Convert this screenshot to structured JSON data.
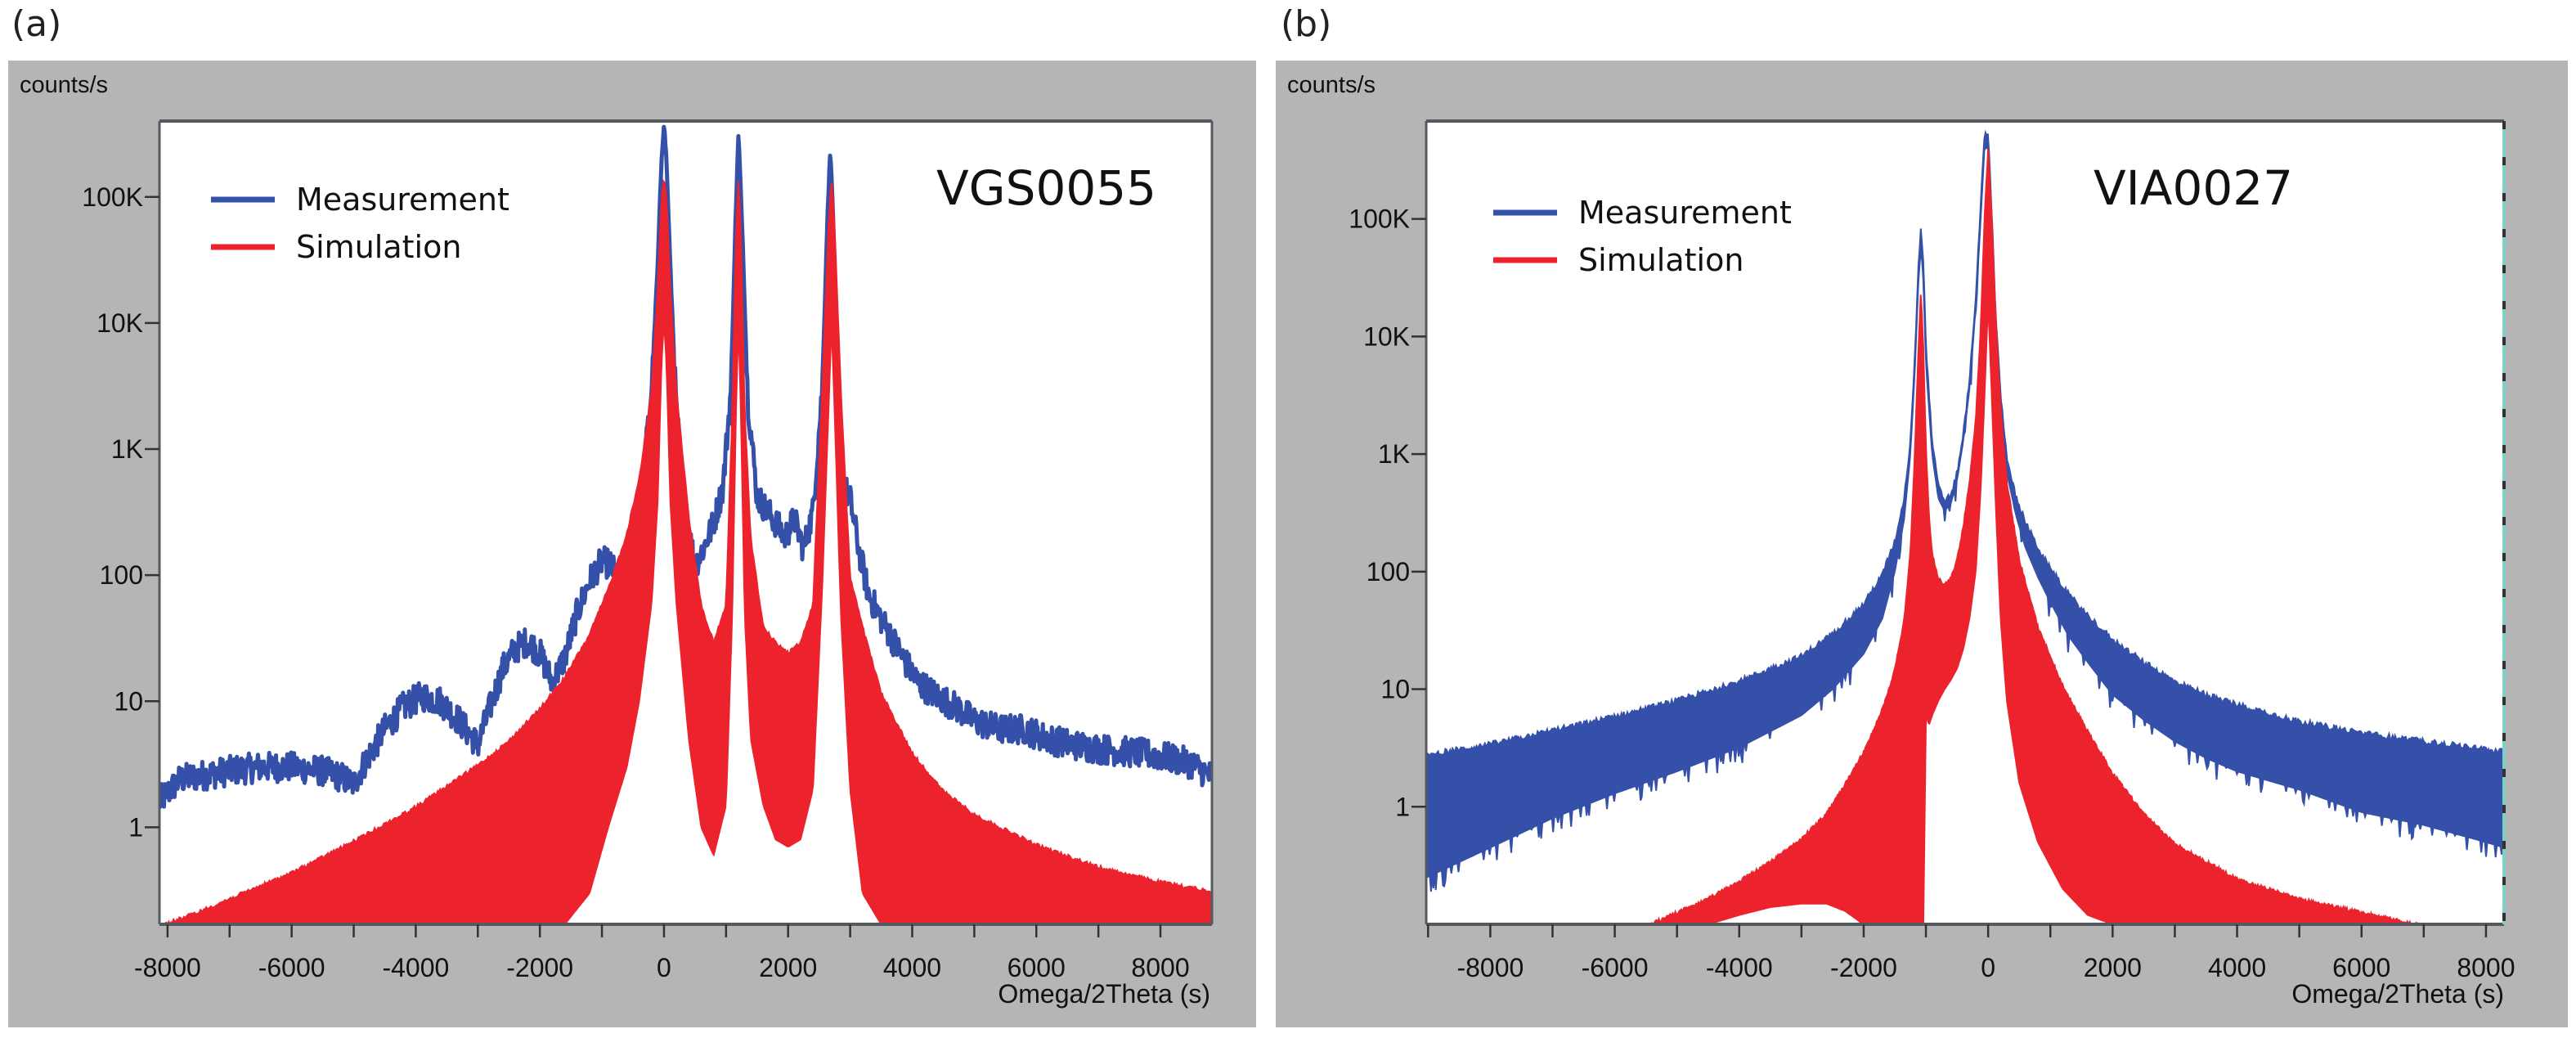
{
  "figure": {
    "panels": [
      {
        "label": "(a)",
        "y_unit_label": "counts/s",
        "x_axis_label": "Omega/2Theta (s)",
        "sample_id": "VGS0055"
      },
      {
        "label": "(b)",
        "y_unit_label": "counts/s",
        "x_axis_label": "Omega/2Theta (s)",
        "sample_id": "VIA0027"
      }
    ],
    "colors": {
      "measurement": "#3450a8",
      "simulation": "#ec222c",
      "frame_background": "#b5b5b5",
      "plot_background": "#ffffff",
      "axis": "#555a60"
    }
  },
  "chart_data": [
    {
      "type": "line",
      "title": "VGS0055",
      "xlabel": "Omega/2Theta (s)",
      "ylabel": "counts/s",
      "yscale": "log",
      "xlim": [
        -8130,
        8830
      ],
      "ylim": [
        0.17,
        400000
      ],
      "grid": false,
      "legend": {
        "position": "top-left",
        "entries": [
          "Measurement",
          "Simulation"
        ]
      },
      "x_ticks": [
        -8000,
        -6000,
        -4000,
        -2000,
        0,
        2000,
        4000,
        6000,
        8000
      ],
      "x_tick_labels": [
        "-8000",
        "-6000",
        "-4000",
        "-2000",
        "0",
        "2000",
        "4000",
        "6000",
        "8000"
      ],
      "x_minor_step": 1000,
      "y_ticks": [
        1,
        10,
        100,
        1000,
        10000,
        100000
      ],
      "y_tick_labels": [
        "1",
        "10",
        "100",
        "1K",
        "10K",
        "100K"
      ],
      "series": [
        {
          "name": "Measurement",
          "style": "noisy-line",
          "x": [
            -8130,
            -7800,
            -7400,
            -7000,
            -6500,
            -6000,
            -5500,
            -5200,
            -5000,
            -4800,
            -4500,
            -4200,
            -3900,
            -3600,
            -3300,
            -3000,
            -2800,
            -2600,
            -2400,
            -2200,
            -2000,
            -1800,
            -1600,
            -1400,
            -1200,
            -1000,
            -850,
            -700,
            -500,
            -350,
            -200,
            -100,
            -40,
            0,
            40,
            100,
            200,
            350,
            500,
            650,
            800,
            950,
            1080,
            1150,
            1200,
            1260,
            1350,
            1500,
            1650,
            1800,
            1950,
            2100,
            2250,
            2400,
            2550,
            2630,
            2680,
            2730,
            2800,
            2900,
            3000,
            3150,
            3300,
            3500,
            3700,
            3900,
            4100,
            4400,
            4700,
            5000,
            5400,
            5800,
            6200,
            6600,
            7000,
            7400,
            7800,
            8200,
            8500,
            8830
          ],
          "y": [
            1.6,
            2.4,
            2.6,
            2.8,
            3.0,
            3.0,
            2.8,
            2.5,
            2.2,
            3.4,
            6,
            9,
            11,
            10,
            7,
            4.5,
            9,
            18,
            26,
            30,
            24,
            14,
            22,
            50,
            90,
            130,
            120,
            80,
            160,
            500,
            3000,
            30000,
            200000,
            380000,
            200000,
            30000,
            2000,
            300,
            120,
            170,
            260,
            500,
            3000,
            60000,
            320000,
            60000,
            2500,
            420,
            330,
            260,
            200,
            280,
            160,
            320,
            3000,
            60000,
            250000,
            60000,
            3000,
            500,
            400,
            150,
            70,
            45,
            30,
            20,
            14,
            11,
            9,
            7,
            6,
            6,
            5,
            4.5,
            4.2,
            4,
            3.8,
            3.5,
            3.2,
            2.5
          ]
        },
        {
          "name": "Simulation",
          "style": "filled-fringes",
          "x": [
            -8130,
            -7500,
            -7000,
            -6000,
            -5000,
            -4000,
            -3000,
            -2500,
            -2000,
            -1600,
            -1200,
            -900,
            -600,
            -400,
            -200,
            -100,
            -40,
            0,
            40,
            100,
            200,
            400,
            600,
            800,
            1000,
            1100,
            1160,
            1200,
            1240,
            1300,
            1400,
            1600,
            1800,
            2000,
            2200,
            2400,
            2550,
            2650,
            2700,
            2750,
            2850,
            3000,
            3200,
            3500,
            4000,
            4500,
            5000,
            6000,
            7000,
            8000,
            8830
          ],
          "y_upper": [
            0.17,
            0.22,
            0.28,
            0.45,
            0.8,
            1.5,
            3.2,
            5,
            9,
            16,
            35,
            80,
            220,
            600,
            3000,
            20000,
            100000,
            150000,
            100000,
            20000,
            3000,
            300,
            60,
            30,
            60,
            2000,
            50000,
            150000,
            50000,
            2000,
            200,
            40,
            30,
            25,
            30,
            60,
            3000,
            60000,
            150000,
            60000,
            3000,
            100,
            40,
            12,
            4,
            2.0,
            1.3,
            0.75,
            0.5,
            0.38,
            0.32
          ],
          "y_lower": [
            0.17,
            0.17,
            0.17,
            0.17,
            0.17,
            0.17,
            0.17,
            0.17,
            0.17,
            0.17,
            0.3,
            1,
            3,
            10,
            60,
            400,
            5000,
            10000,
            5000,
            400,
            60,
            5,
            1.0,
            0.6,
            1.5,
            50,
            2000,
            10000,
            2000,
            50,
            5,
            1.5,
            0.8,
            0.7,
            0.8,
            2,
            80,
            2000,
            10000,
            2000,
            50,
            2,
            0.3,
            0.17,
            0.17,
            0.17,
            0.17,
            0.17,
            0.17,
            0.17,
            0.17
          ]
        }
      ]
    },
    {
      "type": "line",
      "title": "VIA0027",
      "xlabel": "Omega/2Theta (s)",
      "ylabel": "counts/s",
      "yscale": "log",
      "xlim": [
        -9030,
        8290
      ],
      "ylim": [
        0.1,
        680000
      ],
      "grid": false,
      "legend": {
        "position": "top-left",
        "entries": [
          "Measurement",
          "Simulation"
        ]
      },
      "x_ticks": [
        -8000,
        -6000,
        -4000,
        -2000,
        0,
        2000,
        4000,
        6000,
        8000
      ],
      "x_tick_labels": [
        "-8000",
        "-6000",
        "-4000",
        "-2000",
        "0",
        "2000",
        "4000",
        "6000",
        "8000"
      ],
      "x_minor_step": 1000,
      "y_ticks": [
        1,
        10,
        100,
        1000,
        10000,
        100000
      ],
      "y_tick_labels": [
        "1",
        "10",
        "100",
        "1K",
        "10K",
        "100K"
      ],
      "series": [
        {
          "name": "Measurement",
          "style": "filled-band",
          "x": [
            -9030,
            -8000,
            -7000,
            -6000,
            -5000,
            -4000,
            -3000,
            -2500,
            -2000,
            -1700,
            -1500,
            -1350,
            -1250,
            -1180,
            -1120,
            -1080,
            -1040,
            -1000,
            -900,
            -800,
            -700,
            -600,
            -500,
            -400,
            -300,
            -200,
            -120,
            -60,
            0,
            60,
            120,
            200,
            300,
            450,
            600,
            800,
            1000,
            1300,
            1600,
            2000,
            2500,
            3000,
            3500,
            4000,
            5000,
            6000,
            7000,
            8000,
            8290
          ],
          "y_upper": [
            2.6,
            3.2,
            4.2,
            5.5,
            7.5,
            11,
            18,
            28,
            50,
            90,
            170,
            400,
            1200,
            6000,
            40000,
            80000,
            40000,
            8000,
            1200,
            500,
            380,
            420,
            650,
            1400,
            4000,
            20000,
            120000,
            500000,
            500000,
            100000,
            15000,
            3000,
            900,
            400,
            250,
            150,
            100,
            60,
            40,
            25,
            16,
            11,
            8.5,
            7,
            5,
            4,
            3.4,
            2.9,
            2.8
          ],
          "y_lower": [
            0.25,
            0.45,
            0.8,
            1.3,
            2.0,
            3.2,
            6,
            10,
            20,
            40,
            100,
            280,
            1000,
            5000,
            30000,
            60000,
            30000,
            6000,
            1000,
            420,
            330,
            380,
            600,
            1300,
            3600,
            18000,
            100000,
            400000,
            400000,
            80000,
            12000,
            2400,
            700,
            300,
            160,
            90,
            55,
            28,
            17,
            9,
            5.5,
            3.6,
            2.6,
            2.0,
            1.4,
            0.9,
            0.7,
            0.5,
            0.45
          ]
        },
        {
          "name": "Simulation",
          "style": "filled-fringes",
          "x": [
            -5500,
            -5000,
            -4500,
            -4000,
            -3500,
            -3000,
            -2600,
            -2300,
            -2000,
            -1700,
            -1500,
            -1350,
            -1250,
            -1180,
            -1120,
            -1080,
            -1040,
            -1000,
            -950,
            -900,
            -800,
            -700,
            -600,
            -500,
            -400,
            -300,
            -200,
            -120,
            -60,
            0,
            60,
            120,
            200,
            300,
            500,
            800,
            1200,
            1600,
            2000,
            2500,
            3000,
            4000,
            5000,
            6000,
            7000
          ],
          "y_upper": [
            0.1,
            0.13,
            0.17,
            0.24,
            0.35,
            0.55,
            0.9,
            1.6,
            3,
            7,
            15,
            40,
            150,
            1000,
            8000,
            25000,
            8000,
            1200,
            300,
            150,
            90,
            80,
            90,
            130,
            250,
            600,
            2000,
            12000,
            100000,
            400000,
            100000,
            15000,
            2500,
            600,
            130,
            35,
            11,
            4.5,
            2.0,
            0.9,
            0.5,
            0.25,
            0.17,
            0.13,
            0.1
          ],
          "y_lower": [
            0.1,
            0.1,
            0.1,
            0.12,
            0.14,
            0.15,
            0.15,
            0.13,
            0.1,
            0.1,
            0.1,
            0.1,
            0.1,
            0.1,
            0.1,
            0.1,
            0.1,
            6,
            5,
            6,
            8,
            10,
            12,
            15,
            22,
            40,
            100,
            500,
            3000,
            20000,
            3000,
            400,
            40,
            8,
            1.6,
            0.5,
            0.2,
            0.12,
            0.1,
            0.1,
            0.1,
            0.1,
            0.1,
            0.1,
            0.1
          ]
        }
      ]
    }
  ]
}
